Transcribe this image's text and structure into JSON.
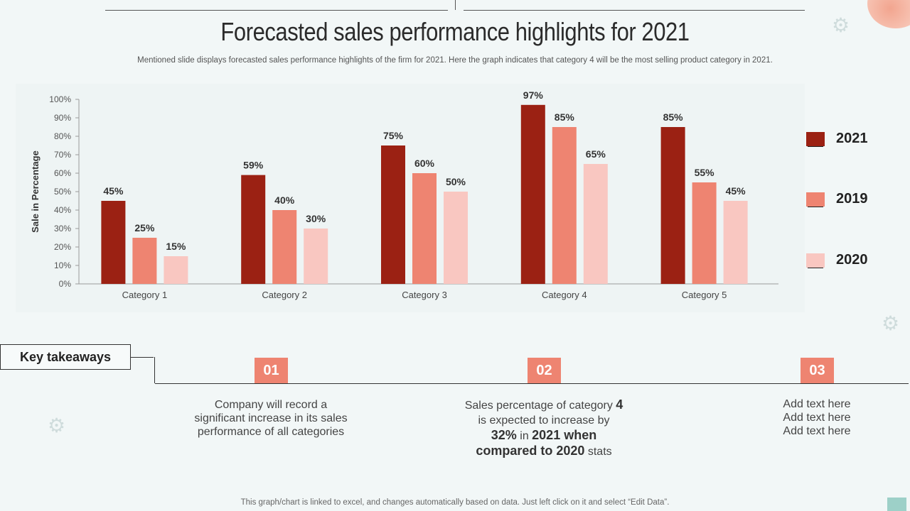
{
  "title": "Forecasted sales performance highlights for 2021",
  "subtitle": "Mentioned slide displays forecasted sales performance highlights of the firm for 2021. Here the graph indicates that category 4 will be the most selling product category in 2021.",
  "chart_data": {
    "type": "bar",
    "categories": [
      "Category 1",
      "Category 2",
      "Category 3",
      "Category 4",
      "Category 5"
    ],
    "series": [
      {
        "name": "2021",
        "values": [
          45,
          59,
          75,
          97,
          85
        ],
        "color": "#9b2113"
      },
      {
        "name": "2019",
        "values": [
          25,
          40,
          60,
          85,
          55
        ],
        "color": "#ee8471"
      },
      {
        "name": "2020",
        "values": [
          15,
          30,
          50,
          65,
          45
        ],
        "color": "#f9c7c1"
      }
    ],
    "data_labels": [
      [
        "45%",
        "59%",
        "75%",
        "97%",
        "85%"
      ],
      [
        "25%",
        "40%",
        "60%",
        "85%",
        "55%"
      ],
      [
        "15%",
        "30%",
        "50%",
        "65%",
        "45%"
      ]
    ],
    "ylabel": "Sale in Percentage",
    "xlabel": "",
    "ylim": [
      0,
      100
    ],
    "yticks": [
      0,
      10,
      20,
      30,
      40,
      50,
      60,
      70,
      80,
      90,
      100
    ],
    "ytick_labels": [
      "0%",
      "10%",
      "20%",
      "30%",
      "40%",
      "50%",
      "60%",
      "70%",
      "80%",
      "90%",
      "100%"
    ],
    "legend_position": "right",
    "grid": false
  },
  "legend": {
    "items": [
      {
        "label": "2021",
        "color": "#9b2113"
      },
      {
        "label": "2019",
        "color": "#ee8471"
      },
      {
        "label": "2020",
        "color": "#f9c7c1"
      }
    ]
  },
  "key_takeaways": {
    "heading": "Key takeaways",
    "items": [
      {
        "number": "01",
        "lines": [
          "Company will record a",
          "significant increase in its sales",
          "performance of all categories"
        ]
      },
      {
        "number": "02",
        "l1_a": "Sales percentage of category ",
        "l1_b": "4",
        "l2": "is expected to increase by",
        "l3_a": "32%",
        "l3_b": " in ",
        "l3_c": "2021 when",
        "l4_a": "compared to 2020",
        "l4_b": " stats"
      },
      {
        "number": "03",
        "lines": [
          "Add text here",
          "Add text here",
          "Add text here"
        ]
      }
    ]
  },
  "footer": "This graph/chart is linked to excel,  and changes automatically based on data. Just left click on it and select “Edit Data”.",
  "colors": {
    "accent": "#ee8471",
    "dark_red": "#9b2113",
    "light_pink": "#f9c7c1",
    "background": "#f2f7f7"
  }
}
